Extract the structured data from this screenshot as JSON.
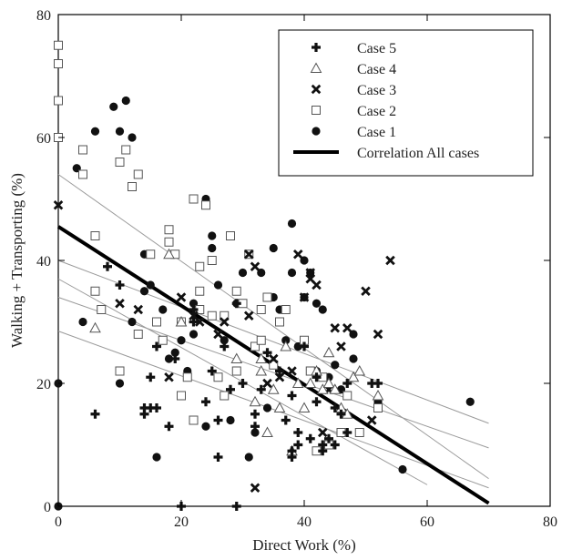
{
  "chart_data": {
    "type": "scatter",
    "xlabel": "Direct Work (%)",
    "ylabel": "Walking + Transporting (%)",
    "xlim": [
      0,
      80
    ],
    "ylim": [
      0,
      80
    ],
    "xticks": [
      "0",
      "20",
      "40",
      "60",
      "80"
    ],
    "yticks": [
      "0",
      "20",
      "40",
      "60",
      "80"
    ],
    "grid": false,
    "legend_position": "top-right",
    "series": [
      {
        "name": "Case 5",
        "marker": "plus",
        "color": "#111111",
        "points": [
          [
            6,
            15
          ],
          [
            8,
            39
          ],
          [
            10,
            36
          ],
          [
            14,
            15
          ],
          [
            14,
            16
          ],
          [
            15,
            16
          ],
          [
            15,
            21
          ],
          [
            16,
            16
          ],
          [
            16,
            26
          ],
          [
            18,
            13
          ],
          [
            19,
            24
          ],
          [
            20,
            0
          ],
          [
            22,
            30
          ],
          [
            22,
            32
          ],
          [
            24,
            17
          ],
          [
            25,
            22
          ],
          [
            26,
            8
          ],
          [
            26,
            14
          ],
          [
            27,
            26
          ],
          [
            28,
            19
          ],
          [
            29,
            0
          ],
          [
            29,
            33
          ],
          [
            30,
            20
          ],
          [
            32,
            13
          ],
          [
            32,
            15
          ],
          [
            33,
            19
          ],
          [
            34,
            25
          ],
          [
            36,
            22
          ],
          [
            37,
            14
          ],
          [
            38,
            8
          ],
          [
            38,
            9
          ],
          [
            38,
            18
          ],
          [
            39,
            10
          ],
          [
            39,
            12
          ],
          [
            40,
            26
          ],
          [
            41,
            11
          ],
          [
            42,
            17
          ],
          [
            42,
            21
          ],
          [
            43,
            9
          ],
          [
            43,
            10
          ],
          [
            44,
            11
          ],
          [
            45,
            10
          ],
          [
            45,
            16
          ],
          [
            46,
            15
          ],
          [
            47,
            12
          ],
          [
            47,
            20
          ],
          [
            51,
            20
          ],
          [
            52,
            20
          ]
        ]
      },
      {
        "name": "Case 4",
        "marker": "triangle",
        "color": "#111111",
        "points": [
          [
            6,
            29
          ],
          [
            18,
            41
          ],
          [
            20,
            30
          ],
          [
            29,
            24
          ],
          [
            32,
            17
          ],
          [
            33,
            22
          ],
          [
            33,
            24
          ],
          [
            34,
            12
          ],
          [
            35,
            19
          ],
          [
            36,
            16
          ],
          [
            37,
            26
          ],
          [
            38,
            9
          ],
          [
            39,
            20
          ],
          [
            40,
            16
          ],
          [
            41,
            20
          ],
          [
            42,
            22
          ],
          [
            43,
            19
          ],
          [
            44,
            20
          ],
          [
            44,
            25
          ],
          [
            45,
            19
          ],
          [
            46,
            16
          ],
          [
            47,
            15
          ],
          [
            48,
            21
          ],
          [
            49,
            22
          ],
          [
            52,
            18
          ]
        ]
      },
      {
        "name": "Case 3",
        "marker": "x",
        "color": "#111111",
        "points": [
          [
            0,
            49
          ],
          [
            10,
            33
          ],
          [
            13,
            32
          ],
          [
            18,
            21
          ],
          [
            20,
            34
          ],
          [
            22,
            31
          ],
          [
            23,
            30
          ],
          [
            26,
            28
          ],
          [
            27,
            30
          ],
          [
            31,
            41
          ],
          [
            31,
            31
          ],
          [
            32,
            39
          ],
          [
            32,
            3
          ],
          [
            34,
            20
          ],
          [
            35,
            24
          ],
          [
            36,
            21
          ],
          [
            38,
            22
          ],
          [
            39,
            41
          ],
          [
            40,
            34
          ],
          [
            41,
            38
          ],
          [
            41,
            37
          ],
          [
            42,
            36
          ],
          [
            43,
            12
          ],
          [
            44,
            19
          ],
          [
            45,
            29
          ],
          [
            46,
            26
          ],
          [
            47,
            29
          ],
          [
            50,
            35
          ],
          [
            51,
            14
          ],
          [
            52,
            28
          ],
          [
            54,
            40
          ]
        ]
      },
      {
        "name": "Case 2",
        "marker": "square",
        "color": "#111111",
        "points": [
          [
            0,
            75
          ],
          [
            0,
            72
          ],
          [
            0,
            66
          ],
          [
            0,
            60
          ],
          [
            4,
            54
          ],
          [
            4,
            58
          ],
          [
            6,
            35
          ],
          [
            6,
            44
          ],
          [
            7,
            32
          ],
          [
            10,
            56
          ],
          [
            10,
            22
          ],
          [
            11,
            58
          ],
          [
            12,
            52
          ],
          [
            13,
            54
          ],
          [
            13,
            28
          ],
          [
            15,
            41
          ],
          [
            16,
            30
          ],
          [
            17,
            27
          ],
          [
            18,
            43
          ],
          [
            18,
            45
          ],
          [
            19,
            41
          ],
          [
            20,
            30
          ],
          [
            20,
            18
          ],
          [
            21,
            21
          ],
          [
            22,
            14
          ],
          [
            22,
            50
          ],
          [
            23,
            39
          ],
          [
            23,
            35
          ],
          [
            23,
            32
          ],
          [
            24,
            49
          ],
          [
            25,
            40
          ],
          [
            25,
            31
          ],
          [
            26,
            21
          ],
          [
            27,
            18
          ],
          [
            27,
            31
          ],
          [
            28,
            44
          ],
          [
            29,
            35
          ],
          [
            29,
            22
          ],
          [
            30,
            33
          ],
          [
            31,
            41
          ],
          [
            32,
            26
          ],
          [
            33,
            27
          ],
          [
            33,
            32
          ],
          [
            34,
            34
          ],
          [
            35,
            23
          ],
          [
            36,
            30
          ],
          [
            37,
            32
          ],
          [
            40,
            27
          ],
          [
            41,
            22
          ],
          [
            42,
            9
          ],
          [
            43,
            21
          ],
          [
            44,
            10
          ],
          [
            46,
            12
          ],
          [
            47,
            18
          ],
          [
            49,
            12
          ],
          [
            52,
            16
          ]
        ]
      },
      {
        "name": "Case 1",
        "marker": "circle",
        "color": "#111111",
        "points": [
          [
            0,
            20
          ],
          [
            0,
            0
          ],
          [
            3,
            55
          ],
          [
            4,
            30
          ],
          [
            6,
            61
          ],
          [
            9,
            65
          ],
          [
            10,
            61
          ],
          [
            11,
            66
          ],
          [
            12,
            60
          ],
          [
            10,
            20
          ],
          [
            12,
            30
          ],
          [
            14,
            35
          ],
          [
            14,
            41
          ],
          [
            15,
            36
          ],
          [
            16,
            8
          ],
          [
            17,
            32
          ],
          [
            18,
            24
          ],
          [
            19,
            25
          ],
          [
            20,
            27
          ],
          [
            21,
            22
          ],
          [
            22,
            33
          ],
          [
            22,
            28
          ],
          [
            24,
            13
          ],
          [
            24,
            50
          ],
          [
            25,
            42
          ],
          [
            25,
            44
          ],
          [
            26,
            36
          ],
          [
            27,
            27
          ],
          [
            28,
            14
          ],
          [
            29,
            33
          ],
          [
            30,
            38
          ],
          [
            31,
            8
          ],
          [
            32,
            12
          ],
          [
            33,
            38
          ],
          [
            34,
            16
          ],
          [
            35,
            34
          ],
          [
            35,
            42
          ],
          [
            36,
            32
          ],
          [
            37,
            27
          ],
          [
            38,
            38
          ],
          [
            38,
            46
          ],
          [
            39,
            26
          ],
          [
            40,
            40
          ],
          [
            40,
            34
          ],
          [
            41,
            38
          ],
          [
            42,
            22
          ],
          [
            42,
            33
          ],
          [
            43,
            32
          ],
          [
            44,
            21
          ],
          [
            45,
            23
          ],
          [
            46,
            19
          ],
          [
            48,
            28
          ],
          [
            48,
            24
          ],
          [
            52,
            17
          ],
          [
            56,
            6
          ],
          [
            67,
            17
          ]
        ]
      },
      {
        "name": "Correlation All cases",
        "type": "line",
        "color": "#000000",
        "x": [
          0,
          70
        ],
        "y": [
          45.5,
          0.5
        ]
      }
    ],
    "case_fit_lines": [
      {
        "x": [
          0,
          70
        ],
        "y": [
          54,
          4.5
        ]
      },
      {
        "x": [
          0,
          70
        ],
        "y": [
          40,
          13.5
        ]
      },
      {
        "x": [
          0,
          70
        ],
        "y": [
          34,
          9.5
        ]
      },
      {
        "x": [
          0,
          60
        ],
        "y": [
          37,
          3.5
        ]
      },
      {
        "x": [
          0,
          70
        ],
        "y": [
          28.5,
          3
        ]
      }
    ]
  }
}
